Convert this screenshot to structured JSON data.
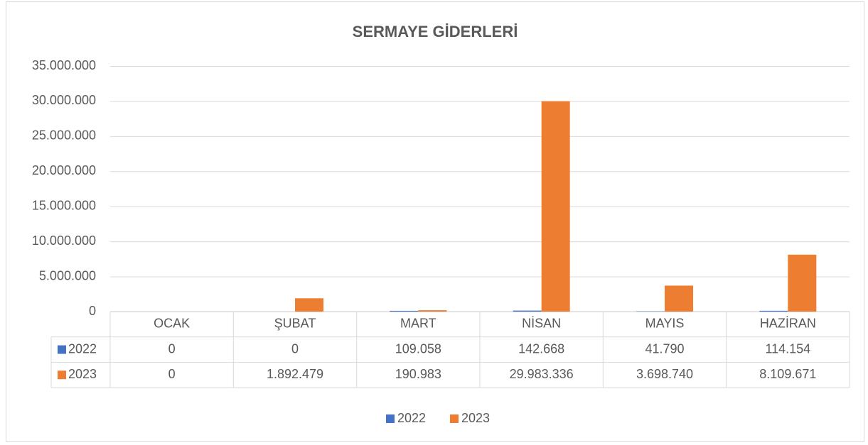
{
  "chart_data": {
    "type": "bar",
    "title": "SERMAYE GİDERLERİ",
    "categories": [
      "OCAK",
      "ŞUBAT",
      "MART",
      "NİSAN",
      "MAYIS",
      "HAZİRAN"
    ],
    "series": [
      {
        "name": "2022",
        "color": "#4472c4",
        "values": [
          0,
          0,
          109058,
          142668,
          41790,
          114154
        ],
        "value_labels": [
          "0",
          "0",
          "109.058",
          "142.668",
          "41.790",
          "114.154"
        ]
      },
      {
        "name": "2023",
        "color": "#ed7d31",
        "values": [
          0,
          1892479,
          190983,
          29983336,
          3698740,
          8109671
        ],
        "value_labels": [
          "0",
          "1.892.479",
          "190.983",
          "29.983.336",
          "3.698.740",
          "8.109.671"
        ]
      }
    ],
    "ylim": [
      0,
      35000000
    ],
    "yticks": [
      0,
      {
        "value": 5000000,
        "label": "5.000.000"
      },
      {
        "value": 10000000,
        "label": "10.000.000"
      },
      {
        "value": 15000000,
        "label": "15.000.000"
      },
      {
        "value": 20000000,
        "label": "20.000.000"
      },
      {
        "value": 25000000,
        "label": "25.000.000"
      },
      {
        "value": 30000000,
        "label": "30.000.000"
      },
      {
        "value": 35000000,
        "label": "35.000.000"
      }
    ],
    "grid": true,
    "legend": "bottom"
  }
}
